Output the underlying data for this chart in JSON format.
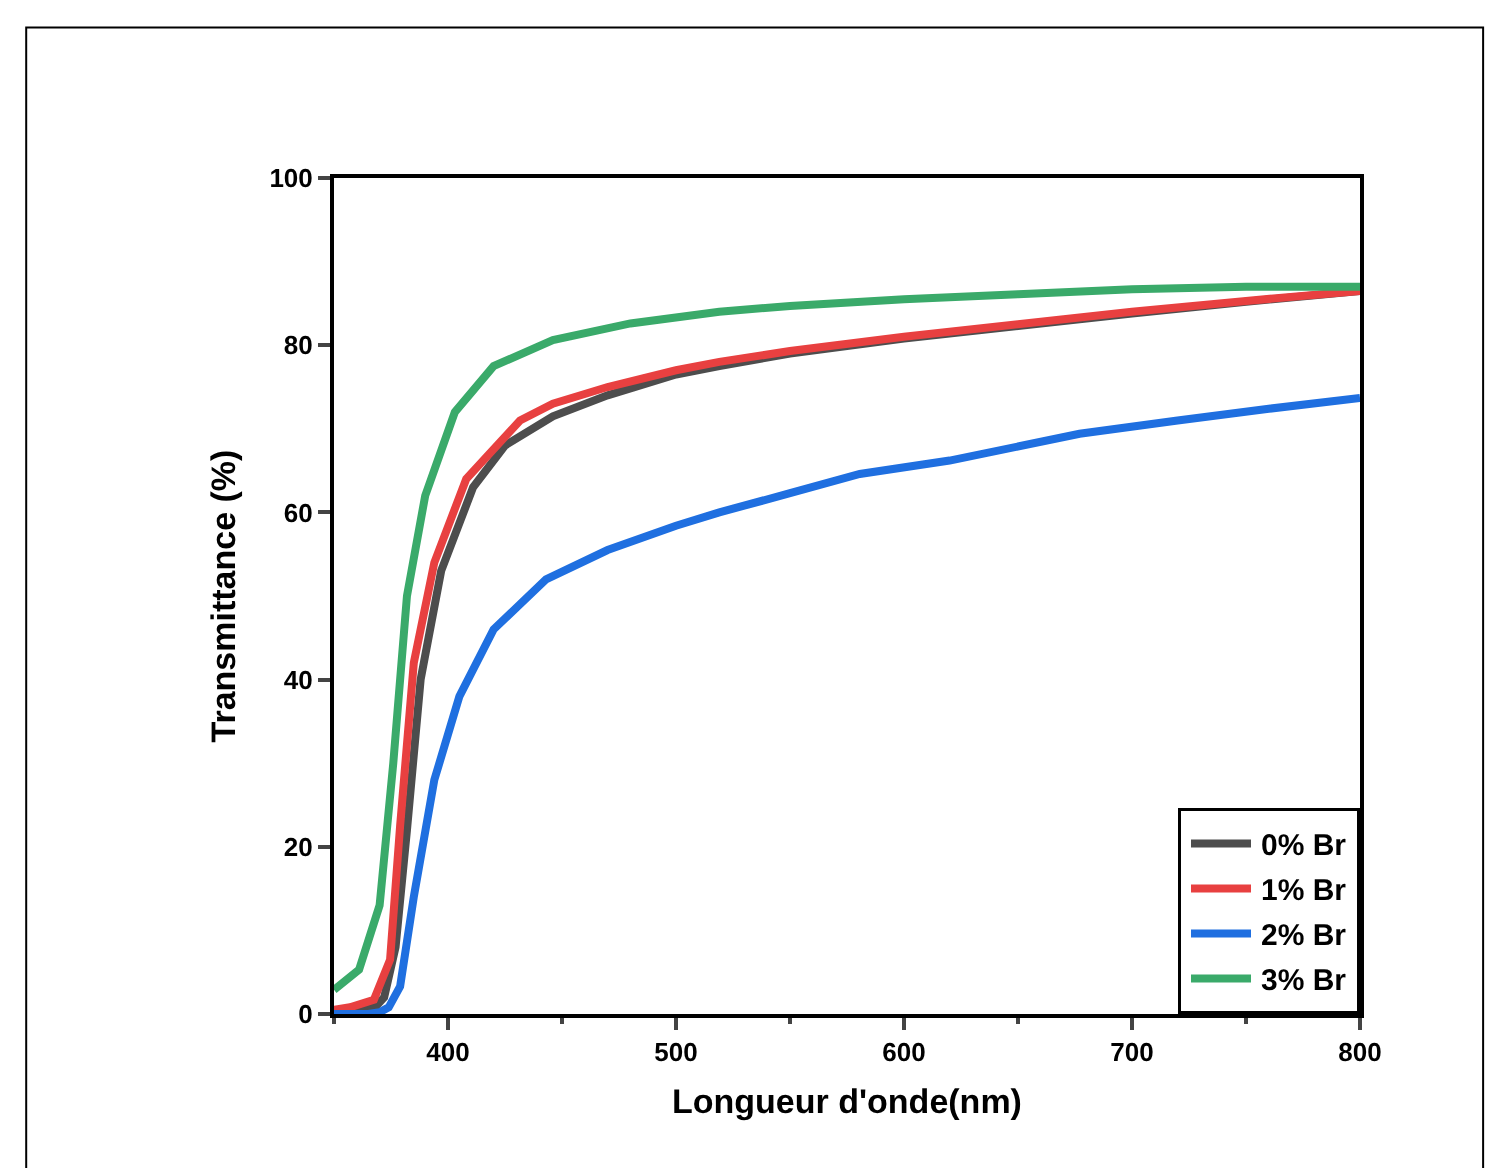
{
  "chart_data": {
    "type": "line",
    "xlabel": "Longueur d'onde(nm)",
    "ylabel": "Transmittance (%)",
    "xlim": [
      350,
      800
    ],
    "xticks": [
      400,
      500,
      600,
      700,
      800
    ],
    "ylim": [
      0,
      100
    ],
    "yticks": [
      0,
      20,
      40,
      60,
      80,
      100
    ],
    "grid": false,
    "legend": "bottom right",
    "marker": "none",
    "line_style": "solid",
    "series": [
      {
        "name": "0% Br",
        "color": "#4d4d4d",
        "x": [
          350,
          360,
          368,
          372,
          377,
          382,
          388,
          397,
          411,
          425,
          446,
          470,
          500,
          519,
          550,
          600,
          650,
          700,
          750,
          800
        ],
        "values": [
          0.3,
          0.4,
          0.8,
          2,
          8,
          22,
          40,
          53,
          63,
          68,
          71.5,
          74,
          76.5,
          77.5,
          79,
          80.8,
          82.3,
          83.8,
          85.2,
          86.5
        ]
      },
      {
        "name": "1% Br",
        "color": "#e84040",
        "x": [
          350,
          357,
          367.5,
          374.6,
          379,
          385,
          394,
          408,
          431.6,
          446,
          470,
          500,
          519,
          550,
          600,
          650,
          700,
          750,
          800
        ],
        "values": [
          0.5,
          0.8,
          1.7,
          6.5,
          22.5,
          42,
          54,
          64,
          71,
          73,
          75,
          77,
          78,
          79.3,
          81,
          82.5,
          84,
          85.3,
          86.5
        ]
      },
      {
        "name": "2% Br",
        "color": "#1f6fe0",
        "x": [
          350,
          365,
          370,
          374,
          379,
          385,
          394,
          405,
          420,
          443,
          470,
          500,
          519,
          550,
          580.6,
          620,
          677,
          720,
          760,
          800
        ],
        "values": [
          0,
          0,
          0.2,
          0.8,
          3.3,
          14,
          28,
          38,
          46,
          52,
          55.5,
          58.4,
          60,
          62.3,
          64.6,
          66.2,
          69.4,
          71,
          72.4,
          73.7
        ]
      },
      {
        "name": "3% Br",
        "color": "#3aaa6a",
        "x": [
          350,
          361,
          370,
          376,
          382,
          390,
          403,
          420,
          446,
          480,
          519,
          550,
          600,
          650,
          700,
          750,
          800
        ],
        "values": [
          2.9,
          5.3,
          13,
          30,
          50,
          62,
          72,
          77.5,
          80.6,
          82.6,
          84,
          84.7,
          85.5,
          86.1,
          86.7,
          87,
          87
        ]
      }
    ]
  }
}
